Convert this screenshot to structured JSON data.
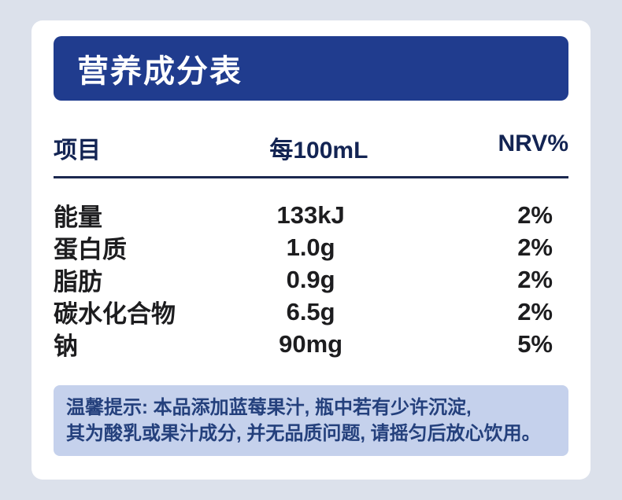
{
  "header": {
    "title": "营养成分表"
  },
  "table": {
    "columns": [
      "项目",
      "每100mL",
      "NRV%"
    ],
    "rows": [
      {
        "item": "能量",
        "per100ml": "133kJ",
        "nrv": "2%"
      },
      {
        "item": "蛋白质",
        "per100ml": "1.0g",
        "nrv": "2%"
      },
      {
        "item": "脂肪",
        "per100ml": "0.9g",
        "nrv": "2%"
      },
      {
        "item": "碳水化合物",
        "per100ml": "6.5g",
        "nrv": "2%"
      },
      {
        "item": "钠",
        "per100ml": "90mg",
        "nrv": "5%"
      }
    ]
  },
  "note": {
    "line1": "温馨提示: 本品添加蓝莓果汁, 瓶中若有少许沉淀,",
    "line2": "其为酸乳或果汁成分, 并无品质问题, 请摇匀后放心饮用。"
  },
  "colors": {
    "page_background": "#dce1eb",
    "card_background": "#ffffff",
    "banner_background": "#203c8e",
    "banner_text": "#ffffff",
    "header_text": "#132453",
    "row_text": "#1d1d1f",
    "divider": "#1b2850",
    "note_background": "#c5d1ec",
    "note_text": "#24407c"
  }
}
